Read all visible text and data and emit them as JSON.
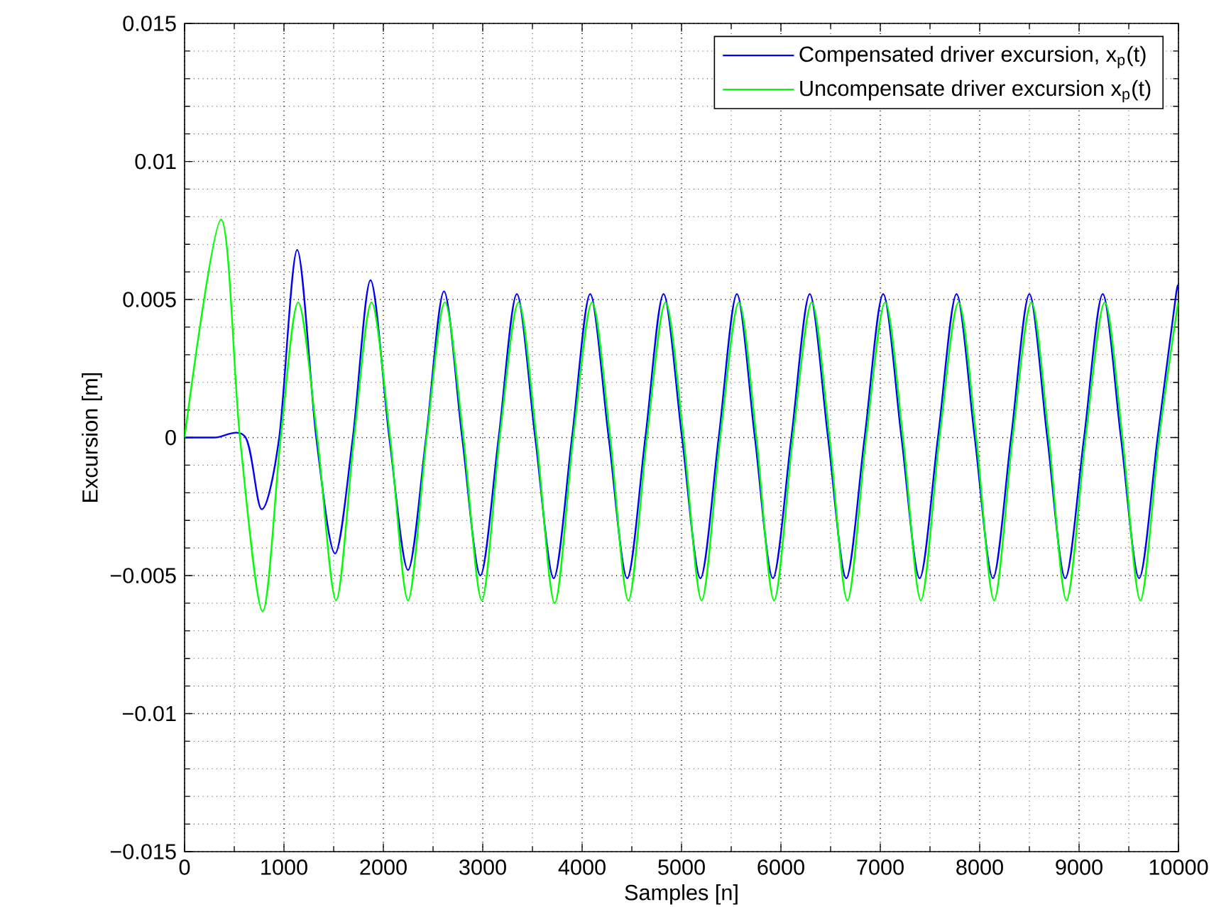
{
  "chart_data": {
    "type": "line",
    "xlabel": "Samples [n]",
    "ylabel": "Excursion [m]",
    "xlim": [
      0,
      10000
    ],
    "ylim": [
      -0.015,
      0.015
    ],
    "xticks": [
      0,
      1000,
      2000,
      3000,
      4000,
      5000,
      6000,
      7000,
      8000,
      9000,
      10000
    ],
    "yticks": [
      {
        "value": -0.015,
        "label": "−0.015"
      },
      {
        "value": -0.01,
        "label": "−0.01"
      },
      {
        "value": -0.005,
        "label": "−0.005"
      },
      0,
      0.005,
      0.01,
      0.015
    ],
    "grid": true,
    "legend": "top right",
    "marker": "none",
    "line_style": "solid",
    "series": [
      {
        "name": "Compensated driver excursion, x$_{p}$(t)",
        "color": "#0000ff",
        "x": [
          0,
          300,
          614,
          776,
          952,
          1133,
          1325,
          1514,
          1693,
          1871,
          2060,
          2248,
          2430,
          2610,
          2793,
          2976,
          3160,
          3343,
          3528,
          3714,
          3898,
          4081,
          4267,
          4453,
          4636,
          4819,
          5005,
          5190,
          5374,
          5557,
          5738,
          5919,
          6105,
          6290,
          6474,
          6657,
          6842,
          7029,
          7213,
          7396,
          7580,
          7767,
          7950,
          8133,
          8316,
          8500,
          8680,
          8861,
          9050,
          9238,
          9421,
          9604,
          9790,
          9976,
          10000
        ],
        "values": [
          0,
          0,
          0,
          -0.0026,
          0,
          0.0068,
          0,
          -0.0042,
          0,
          0.0057,
          0,
          -0.0048,
          0,
          0.0053,
          0,
          -0.005,
          0,
          0.0052,
          0,
          -0.0051,
          0,
          0.0052,
          0,
          -0.0051,
          0,
          0.0052,
          0,
          -0.0051,
          0,
          0.0052,
          0,
          -0.0051,
          0,
          0.0052,
          0,
          -0.0051,
          0,
          0.0052,
          0,
          -0.0051,
          0,
          0.0052,
          0,
          -0.0051,
          0,
          0.0052,
          0,
          -0.0051,
          0,
          0.0052,
          0,
          -0.0051,
          0,
          0.0052,
          0.0051
        ]
      },
      {
        "name": "Uncompensate driver excursion x$_{p}$(t)",
        "color": "#00ff00",
        "x": [
          0,
          367,
          557,
          786,
          967,
          1143,
          1335,
          1524,
          1705,
          1881,
          2068,
          2248,
          2435,
          2619,
          2805,
          2990,
          3170,
          3360,
          3540,
          3724,
          3910,
          4100,
          4282,
          4465,
          4651,
          4839,
          5020,
          5202,
          5389,
          5577,
          5753,
          5931,
          6120,
          6310,
          6489,
          6669,
          6857,
          7049,
          7228,
          7408,
          7595,
          7787,
          7965,
          8145,
          8331,
          8520,
          8695,
          8873,
          9065,
          9258,
          9436,
          9616,
          9805,
          9996
        ],
        "values": [
          0,
          0.0079,
          0,
          -0.0063,
          0,
          0.0049,
          0,
          -0.0059,
          0,
          0.0049,
          0,
          -0.0059,
          0,
          0.0049,
          0,
          -0.0059,
          0,
          0.0049,
          0,
          -0.006,
          0,
          0.0049,
          0,
          -0.0059,
          0,
          0.0049,
          0,
          -0.0059,
          0,
          0.0049,
          0,
          -0.0059,
          0,
          0.0049,
          0,
          -0.0059,
          0,
          0.0049,
          0,
          -0.0059,
          0,
          0.0049,
          0,
          -0.0059,
          0,
          0.0049,
          0,
          -0.0059,
          0,
          0.0049,
          0,
          -0.0059,
          0,
          0.0049
        ]
      }
    ]
  }
}
